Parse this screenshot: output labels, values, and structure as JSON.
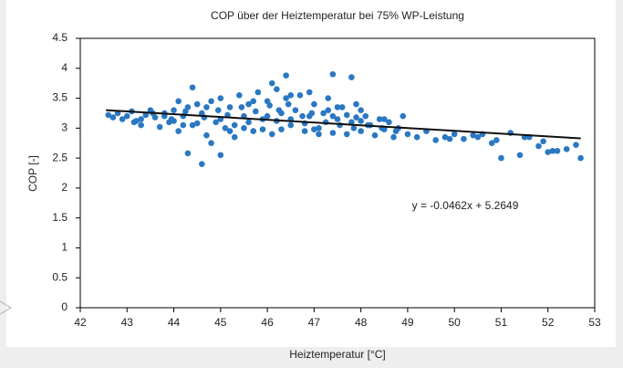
{
  "chart_data": {
    "type": "scatter",
    "title": "COP über der Heiztemperatur bei 75% WP-Leistung",
    "xlabel": "Heiztemperatur [°C]",
    "ylabel": "COP [-]",
    "annotation": "y = -0.0462x + 5.2649",
    "xlim": [
      42,
      53
    ],
    "ylim": [
      0,
      4.5
    ],
    "xticks": [
      42,
      43,
      44,
      45,
      46,
      47,
      48,
      49,
      50,
      51,
      52,
      53
    ],
    "yticks": [
      0,
      0.5,
      1,
      1.5,
      2,
      2.5,
      3,
      3.5,
      4,
      4.5
    ],
    "grid": false,
    "series": [
      {
        "mode": "markers",
        "color": "#2b78c2",
        "x": [
          42.6,
          42.7,
          42.8,
          42.9,
          43.0,
          43.1,
          43.2,
          43.3,
          43.4,
          43.5,
          43.6,
          43.7,
          43.8,
          43.9,
          44.0,
          44.1,
          44.2,
          44.3,
          44.4,
          44.5,
          44.6,
          44.7,
          44.8,
          44.9,
          45.0,
          45.1,
          45.2,
          45.3,
          45.4,
          45.5,
          45.6,
          45.7,
          45.8,
          45.9,
          46.0,
          46.1,
          46.2,
          46.3,
          46.4,
          46.5,
          46.6,
          46.7,
          46.8,
          46.9,
          47.0,
          47.1,
          47.2,
          47.3,
          47.4,
          47.5,
          47.6,
          47.7,
          47.8,
          47.9,
          48.0,
          48.1,
          48.2,
          48.3,
          48.4,
          48.5,
          48.6,
          48.7,
          48.8,
          48.9,
          49.0,
          49.2,
          49.4,
          49.6,
          49.8,
          50.0,
          50.2,
          50.4,
          50.6,
          50.8,
          51.0,
          51.2,
          51.4,
          51.6,
          51.8,
          52.0,
          52.2,
          52.4,
          52.6,
          52.7,
          51.9,
          52.1,
          51.5,
          50.9,
          50.5,
          49.9,
          43.15,
          43.55,
          43.95,
          44.25,
          44.65,
          44.95,
          45.15,
          45.45,
          45.75,
          46.05,
          46.25,
          46.45,
          46.75,
          46.95,
          47.25,
          47.55,
          47.85,
          48.15,
          48.45,
          48.75,
          44.1,
          44.4,
          44.6,
          45.0,
          46.1,
          46.4,
          47.4,
          47.8,
          44.3,
          44.8,
          45.3,
          45.6,
          45.9,
          46.2,
          46.5,
          46.8,
          47.1,
          47.4,
          47.7,
          48.0,
          44.0,
          44.5,
          45.0,
          45.5,
          46.0,
          46.5,
          47.0,
          47.5,
          48.0,
          48.5,
          43.3,
          43.8,
          44.2,
          44.7,
          45.2,
          45.7,
          46.3,
          46.9,
          47.3,
          47.9
        ],
        "values": [
          3.22,
          3.18,
          3.25,
          3.15,
          3.2,
          3.28,
          3.12,
          3.05,
          3.22,
          3.3,
          3.18,
          3.02,
          3.25,
          3.1,
          3.3,
          2.95,
          3.2,
          3.35,
          3.05,
          3.4,
          3.25,
          2.88,
          3.45,
          3.1,
          3.5,
          3.0,
          3.35,
          2.85,
          3.55,
          3.2,
          3.4,
          2.95,
          3.6,
          3.15,
          3.45,
          2.9,
          3.65,
          3.25,
          3.5,
          3.05,
          3.3,
          3.55,
          2.95,
          3.2,
          3.4,
          3.0,
          3.25,
          3.5,
          2.92,
          3.15,
          3.35,
          2.9,
          3.1,
          3.4,
          2.95,
          3.2,
          3.05,
          2.88,
          3.15,
          2.98,
          3.1,
          2.85,
          3.0,
          3.2,
          2.9,
          2.85,
          2.95,
          2.8,
          2.85,
          2.9,
          2.82,
          2.88,
          2.9,
          2.75,
          2.5,
          2.92,
          2.55,
          2.85,
          2.7,
          2.6,
          2.62,
          2.65,
          2.72,
          2.5,
          2.78,
          2.62,
          2.85,
          2.8,
          2.85,
          2.82,
          3.1,
          3.25,
          3.15,
          3.28,
          3.18,
          3.3,
          3.22,
          3.35,
          3.28,
          3.38,
          3.3,
          3.4,
          3.2,
          3.25,
          3.1,
          3.05,
          3.0,
          3.05,
          3.0,
          2.95,
          3.45,
          3.68,
          2.4,
          2.55,
          3.75,
          3.88,
          3.9,
          3.85,
          2.58,
          2.75,
          3.05,
          3.1,
          2.98,
          3.12,
          3.15,
          3.08,
          2.9,
          3.2,
          3.22,
          3.12,
          3.12,
          3.08,
          3.15,
          3.0,
          3.2,
          3.55,
          2.98,
          3.35,
          3.3,
          3.15,
          3.15,
          3.2,
          3.05,
          3.35,
          2.95,
          3.45,
          2.98,
          3.6,
          3.3,
          3.18
        ]
      },
      {
        "mode": "line",
        "color": "#111111",
        "x": [
          42.55,
          52.7
        ],
        "values": [
          3.3,
          2.83
        ]
      }
    ]
  }
}
